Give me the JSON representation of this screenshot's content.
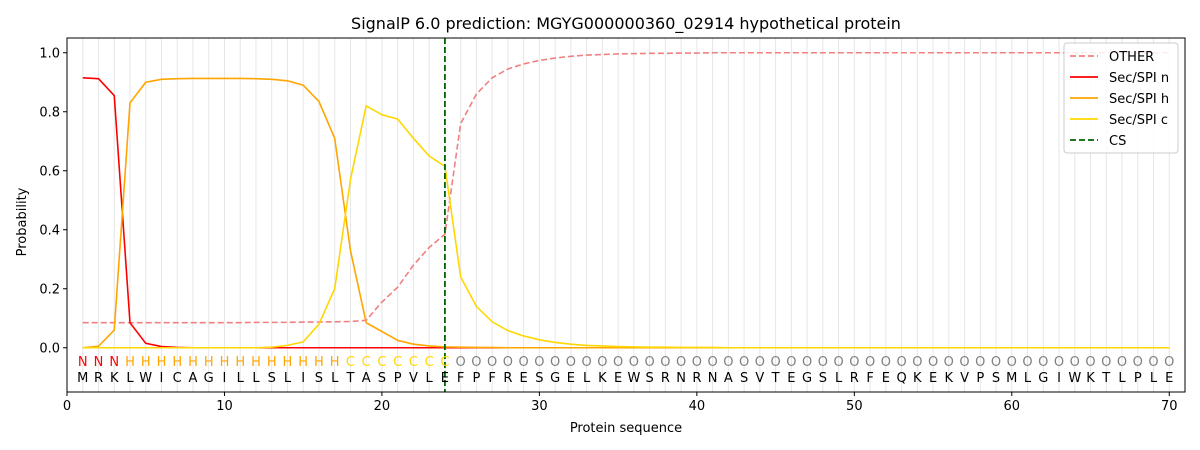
{
  "chart_data": {
    "type": "line",
    "title": "SignalP 6.0 prediction: MGYG000000360_02914 hypothetical protein",
    "xlabel": "Protein sequence",
    "ylabel": "Probability",
    "xlim": [
      0,
      71
    ],
    "ylim": [
      -0.15,
      1.05
    ],
    "xticks": [
      0,
      10,
      20,
      30,
      40,
      50,
      60,
      70
    ],
    "yticks": [
      0.0,
      0.2,
      0.4,
      0.6,
      0.8,
      1.0
    ],
    "xtick_labels": [
      "0",
      "10",
      "20",
      "30",
      "40",
      "50",
      "60",
      "70"
    ],
    "ytick_labels": [
      "0.0",
      "0.2",
      "0.4",
      "0.6",
      "0.8",
      "1.0"
    ],
    "grid": "vertical lines at each residue",
    "legend_position": "top-right",
    "sequence": [
      "M",
      "R",
      "K",
      "L",
      "W",
      "I",
      "C",
      "A",
      "G",
      "I",
      "L",
      "L",
      "S",
      "L",
      "I",
      "S",
      "L",
      "T",
      "A",
      "S",
      "P",
      "V",
      "L",
      "E",
      "F",
      "P",
      "F",
      "R",
      "E",
      "S",
      "G",
      "E",
      "L",
      "K",
      "E",
      "W",
      "S",
      "R",
      "N",
      "R",
      "N",
      "A",
      "S",
      "V",
      "T",
      "E",
      "G",
      "S",
      "L",
      "R",
      "F",
      "E",
      "Q",
      "K",
      "E",
      "K",
      "V",
      "P",
      "S",
      "M",
      "L",
      "G",
      "I",
      "W",
      "K",
      "T",
      "L",
      "P",
      "L",
      "E"
    ],
    "region_labels": [
      "N",
      "N",
      "N",
      "H",
      "H",
      "H",
      "H",
      "H",
      "H",
      "H",
      "H",
      "H",
      "H",
      "H",
      "H",
      "H",
      "H",
      "C",
      "C",
      "C",
      "C",
      "C",
      "C",
      "C",
      "O",
      "O",
      "O",
      "O",
      "O",
      "O",
      "O",
      "O",
      "O",
      "O",
      "O",
      "O",
      "O",
      "O",
      "O",
      "O",
      "O",
      "O",
      "O",
      "O",
      "O",
      "O",
      "O",
      "O",
      "O",
      "O",
      "O",
      "O",
      "O",
      "O",
      "O",
      "O",
      "O",
      "O",
      "O",
      "O",
      "O",
      "O",
      "O",
      "O",
      "O",
      "O",
      "O",
      "O",
      "O",
      "O"
    ],
    "region_colors": {
      "N": "#ff0000",
      "H": "#ffa500",
      "C": "#ffd700",
      "O": "#808080"
    },
    "x": [
      1,
      2,
      3,
      4,
      5,
      6,
      7,
      8,
      9,
      10,
      11,
      12,
      13,
      14,
      15,
      16,
      17,
      18,
      19,
      20,
      21,
      22,
      23,
      24,
      25,
      26,
      27,
      28,
      29,
      30,
      31,
      32,
      33,
      34,
      35,
      36,
      37,
      38,
      39,
      40,
      41,
      42,
      43,
      44,
      45,
      46,
      47,
      48,
      49,
      50,
      51,
      52,
      53,
      54,
      55,
      56,
      57,
      58,
      59,
      60,
      61,
      62,
      63,
      64,
      65,
      66,
      67,
      68,
      69,
      70
    ],
    "series": [
      {
        "name": "OTHER",
        "color": "#f08080",
        "dash": "dashed",
        "values": [
          0.085,
          0.085,
          0.085,
          0.085,
          0.085,
          0.085,
          0.085,
          0.085,
          0.085,
          0.085,
          0.085,
          0.086,
          0.086,
          0.086,
          0.087,
          0.087,
          0.088,
          0.089,
          0.093,
          0.155,
          0.205,
          0.28,
          0.34,
          0.385,
          0.76,
          0.86,
          0.915,
          0.945,
          0.962,
          0.974,
          0.982,
          0.988,
          0.992,
          0.994,
          0.996,
          0.997,
          0.998,
          0.998,
          0.999,
          0.999,
          1.0,
          1.0,
          1.0,
          1.0,
          1.0,
          1.0,
          1.0,
          1.0,
          1.0,
          1.0,
          1.0,
          1.0,
          1.0,
          1.0,
          1.0,
          1.0,
          1.0,
          1.0,
          1.0,
          1.0,
          1.0,
          1.0,
          1.0,
          1.0,
          1.0,
          1.0,
          1.0,
          1.0,
          1.0,
          1.0
        ]
      },
      {
        "name": "Sec/SPI n",
        "color": "#ff0000",
        "dash": "solid",
        "values": [
          0.915,
          0.912,
          0.855,
          0.085,
          0.015,
          0.004,
          0.001,
          0.0,
          0.0,
          0.0,
          0.0,
          0.0,
          0.0,
          0.0,
          0.0,
          0.0,
          0.0,
          0.0,
          0.0,
          0.0,
          0.0,
          0.0,
          0.0,
          0.0,
          0.0,
          0.0,
          0.0,
          0.0,
          0.0,
          0.0,
          0.0,
          0.0,
          0.0,
          0.0,
          0.0,
          0.0,
          0.0,
          0.0,
          0.0,
          0.0,
          0.0,
          0.0,
          0.0,
          0.0,
          0.0,
          0.0,
          0.0,
          0.0,
          0.0,
          0.0,
          0.0,
          0.0,
          0.0,
          0.0,
          0.0,
          0.0,
          0.0,
          0.0,
          0.0,
          0.0,
          0.0,
          0.0,
          0.0,
          0.0,
          0.0,
          0.0,
          0.0,
          0.0,
          0.0,
          0.0
        ]
      },
      {
        "name": "Sec/SPI h",
        "color": "#ffa500",
        "dash": "solid",
        "values": [
          0.0,
          0.005,
          0.06,
          0.83,
          0.9,
          0.91,
          0.912,
          0.913,
          0.913,
          0.913,
          0.913,
          0.912,
          0.91,
          0.905,
          0.89,
          0.835,
          0.71,
          0.33,
          0.085,
          0.055,
          0.025,
          0.012,
          0.006,
          0.003,
          0.002,
          0.001,
          0.001,
          0.0,
          0.0,
          0.0,
          0.0,
          0.0,
          0.0,
          0.0,
          0.0,
          0.0,
          0.0,
          0.0,
          0.0,
          0.0,
          0.0,
          0.0,
          0.0,
          0.0,
          0.0,
          0.0,
          0.0,
          0.0,
          0.0,
          0.0,
          0.0,
          0.0,
          0.0,
          0.0,
          0.0,
          0.0,
          0.0,
          0.0,
          0.0,
          0.0,
          0.0,
          0.0,
          0.0,
          0.0,
          0.0,
          0.0,
          0.0,
          0.0,
          0.0,
          0.0
        ]
      },
      {
        "name": "Sec/SPI c",
        "color": "#ffd700",
        "dash": "solid",
        "values": [
          0.0,
          0.0,
          0.0,
          0.0,
          0.0,
          0.0,
          0.0,
          0.0,
          0.0,
          0.0,
          0.0,
          0.0,
          0.002,
          0.008,
          0.02,
          0.08,
          0.2,
          0.57,
          0.82,
          0.79,
          0.775,
          0.71,
          0.65,
          0.615,
          0.24,
          0.14,
          0.088,
          0.058,
          0.04,
          0.027,
          0.018,
          0.012,
          0.008,
          0.006,
          0.004,
          0.003,
          0.002,
          0.002,
          0.001,
          0.001,
          0.001,
          0.0,
          0.0,
          0.0,
          0.0,
          0.0,
          0.0,
          0.0,
          0.0,
          0.0,
          0.0,
          0.0,
          0.0,
          0.0,
          0.0,
          0.0,
          0.0,
          0.0,
          0.0,
          0.0,
          0.0,
          0.0,
          0.0,
          0.0,
          0.0,
          0.0,
          0.0,
          0.0,
          0.0,
          0.0
        ]
      }
    ],
    "cs": {
      "name": "CS",
      "x": 24,
      "color": "#006400",
      "dash": "dashed"
    }
  }
}
